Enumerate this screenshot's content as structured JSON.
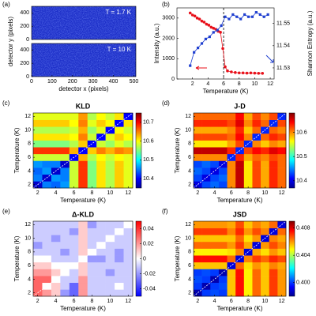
{
  "chart_data": [
    {
      "type": "image",
      "panel_label": "(a)",
      "xlabel": "detector x (pixels)",
      "ylabel": "detector y (pixels)",
      "xlim": [
        0,
        510
      ],
      "xticks": [
        0,
        100,
        200,
        300,
        400,
        500
      ],
      "ylim": [
        0,
        500
      ],
      "yticks": [
        0,
        200,
        400
      ],
      "images": [
        {
          "label": "T = 1.7 K",
          "color": "#1c2ec8"
        },
        {
          "label": "T = 10 K",
          "color": "#1c2ec8"
        }
      ]
    },
    {
      "type": "line",
      "panel_label": "(b)",
      "xlabel": "Temperature (K)",
      "ylabel": "Intensity (a.u.)",
      "y2label": "Shannon Entropy (a.u.)",
      "xlim": [
        0,
        12.5
      ],
      "xticks": [
        2,
        4,
        6,
        8,
        10,
        12
      ],
      "ylim": [
        0,
        3500
      ],
      "yticks": [
        0,
        1000,
        2000,
        3000
      ],
      "y2lim": [
        11.525,
        11.557
      ],
      "y2ticks": [
        11.53,
        11.54,
        11.55
      ],
      "vline": 6,
      "series": [
        {
          "color": "#e8101a",
          "marker": "circle",
          "x": [
            1.7,
            2.0,
            2.3,
            2.6,
            2.9,
            3.2,
            3.5,
            3.8,
            4.1,
            4.4,
            4.7,
            5.0,
            5.3,
            5.6,
            5.9,
            6.2,
            6.5,
            7.0,
            7.5,
            8.0,
            8.5,
            9.0,
            9.5,
            10.0,
            10.5,
            11.0
          ],
          "values": [
            3250,
            3150,
            3100,
            3000,
            2950,
            2850,
            2800,
            2700,
            2650,
            2550,
            2500,
            2450,
            2350,
            2300,
            1500,
            600,
            400,
            350,
            320,
            300,
            300,
            290,
            300,
            290,
            280,
            280
          ]
        },
        {
          "color": "#1f3fd0",
          "marker": "square",
          "axis": "y2",
          "x": [
            1.7,
            2.2,
            2.7,
            3.2,
            3.7,
            4.2,
            4.7,
            5.2,
            5.7,
            6.2,
            6.7,
            7.2,
            7.7,
            8.2,
            8.7,
            9.2,
            9.7,
            10.2,
            10.7,
            11.2,
            11.7
          ],
          "values": [
            11.531,
            11.537,
            11.539,
            11.541,
            11.543,
            11.544,
            11.546,
            11.547,
            11.549,
            11.553,
            11.552,
            11.554,
            11.553,
            11.552,
            11.554,
            11.553,
            11.553,
            11.555,
            11.554,
            11.553,
            11.554
          ]
        }
      ]
    },
    {
      "type": "heatmap",
      "panel_label": "(c)",
      "title": "KLD",
      "xlabel": "Temperature (K)",
      "ylabel": "Temperature (K)",
      "colormap": "jet",
      "x": [
        2,
        3,
        4,
        5,
        6,
        7,
        8,
        9,
        10,
        11,
        12
      ],
      "y": [
        2,
        3,
        4,
        5,
        6,
        7,
        8,
        9,
        10,
        11,
        12
      ],
      "xlim": [
        1.5,
        12.5
      ],
      "ylim": [
        1.5,
        12.5
      ],
      "xticks": [
        2,
        4,
        6,
        8,
        10,
        12
      ],
      "yticks": [
        2,
        4,
        6,
        8,
        10,
        12
      ],
      "clim": [
        10.35,
        10.75
      ],
      "cticks": [
        10.4,
        10.5,
        10.6,
        10.7
      ],
      "z": [
        [
          10.38,
          10.45,
          10.44,
          10.46,
          10.58,
          10.68,
          10.55,
          10.61,
          10.57,
          10.62,
          10.59
        ],
        [
          10.45,
          10.38,
          10.46,
          10.45,
          10.58,
          10.68,
          10.55,
          10.61,
          10.57,
          10.62,
          10.59
        ],
        [
          10.44,
          10.46,
          10.38,
          10.45,
          10.58,
          10.68,
          10.55,
          10.61,
          10.57,
          10.62,
          10.59
        ],
        [
          10.46,
          10.45,
          10.45,
          10.38,
          10.58,
          10.68,
          10.55,
          10.61,
          10.57,
          10.62,
          10.59
        ],
        [
          10.58,
          10.58,
          10.58,
          10.58,
          10.4,
          10.63,
          10.57,
          10.6,
          10.58,
          10.6,
          10.59
        ],
        [
          10.68,
          10.68,
          10.68,
          10.68,
          10.63,
          10.4,
          10.62,
          10.65,
          10.63,
          10.65,
          10.64
        ],
        [
          10.55,
          10.55,
          10.55,
          10.55,
          10.57,
          10.62,
          10.4,
          10.58,
          10.56,
          10.59,
          10.57
        ],
        [
          10.61,
          10.61,
          10.61,
          10.61,
          10.6,
          10.65,
          10.58,
          10.4,
          10.59,
          10.62,
          10.6
        ],
        [
          10.57,
          10.57,
          10.57,
          10.57,
          10.58,
          10.63,
          10.56,
          10.59,
          10.4,
          10.6,
          10.58
        ],
        [
          10.62,
          10.62,
          10.62,
          10.62,
          10.6,
          10.65,
          10.59,
          10.62,
          10.6,
          10.4,
          10.61
        ],
        [
          10.59,
          10.59,
          10.59,
          10.59,
          10.59,
          10.64,
          10.57,
          10.6,
          10.58,
          10.61,
          10.4
        ]
      ]
    },
    {
      "type": "heatmap",
      "panel_label": "(d)",
      "title": "J-D",
      "xlabel": "Temperature (K)",
      "ylabel": "Temperature (K)",
      "colormap": "jet",
      "x": [
        2,
        3,
        4,
        5,
        6,
        7,
        8,
        9,
        10,
        11,
        12
      ],
      "y": [
        2,
        3,
        4,
        5,
        6,
        7,
        8,
        9,
        10,
        11,
        12
      ],
      "xlim": [
        1.5,
        12.5
      ],
      "ylim": [
        1.5,
        12.5
      ],
      "xticks": [
        2,
        4,
        6,
        8,
        10,
        12
      ],
      "yticks": [
        2,
        4,
        6,
        8,
        10,
        12
      ],
      "clim": [
        10.37,
        10.68
      ],
      "cticks": [
        10.4,
        10.5,
        10.6
      ],
      "z": [
        [
          10.4,
          10.43,
          10.44,
          10.43,
          10.6,
          10.66,
          10.57,
          10.62,
          10.59,
          10.63,
          10.61
        ],
        [
          10.43,
          10.4,
          10.43,
          10.44,
          10.6,
          10.66,
          10.57,
          10.62,
          10.59,
          10.63,
          10.61
        ],
        [
          10.44,
          10.43,
          10.4,
          10.43,
          10.6,
          10.66,
          10.57,
          10.62,
          10.59,
          10.63,
          10.61
        ],
        [
          10.43,
          10.44,
          10.43,
          10.4,
          10.6,
          10.66,
          10.57,
          10.62,
          10.59,
          10.63,
          10.61
        ],
        [
          10.6,
          10.6,
          10.6,
          10.6,
          10.42,
          10.63,
          10.59,
          10.61,
          10.6,
          10.62,
          10.61
        ],
        [
          10.66,
          10.66,
          10.66,
          10.66,
          10.63,
          10.42,
          10.62,
          10.64,
          10.63,
          10.65,
          10.64
        ],
        [
          10.57,
          10.57,
          10.57,
          10.57,
          10.59,
          10.62,
          10.42,
          10.6,
          10.58,
          10.6,
          10.59
        ],
        [
          10.62,
          10.62,
          10.62,
          10.62,
          10.61,
          10.64,
          10.6,
          10.42,
          10.61,
          10.63,
          10.62
        ],
        [
          10.59,
          10.59,
          10.59,
          10.59,
          10.6,
          10.63,
          10.58,
          10.61,
          10.42,
          10.61,
          10.6
        ],
        [
          10.63,
          10.63,
          10.63,
          10.63,
          10.62,
          10.65,
          10.6,
          10.63,
          10.61,
          10.42,
          10.62
        ],
        [
          10.61,
          10.61,
          10.61,
          10.61,
          10.61,
          10.64,
          10.59,
          10.62,
          10.6,
          10.62,
          10.42
        ]
      ]
    },
    {
      "type": "heatmap",
      "panel_label": "(e)",
      "title": "Δ-KLD",
      "xlabel": "Temperature (K)",
      "ylabel": "Temperature (K)",
      "colormap": "bwr",
      "x": [
        2,
        3,
        4,
        5,
        6,
        7,
        8,
        9,
        10,
        11,
        12
      ],
      "y": [
        2,
        3,
        4,
        5,
        6,
        7,
        8,
        9,
        10,
        11,
        12
      ],
      "xlim": [
        1.5,
        12.5
      ],
      "ylim": [
        1.5,
        12.5
      ],
      "xticks": [
        2,
        4,
        6,
        8,
        10,
        12
      ],
      "yticks": [
        2,
        4,
        6,
        8,
        10,
        12
      ],
      "clim": [
        -0.05,
        0.05
      ],
      "cticks": [
        -0.04,
        -0.02,
        0,
        0.02,
        0.04
      ],
      "z": [
        [
          0.03,
          0.02,
          0.01,
          -0.02,
          -0.03,
          0.02,
          -0.01,
          -0.01,
          -0.01,
          -0.01,
          -0.01
        ],
        [
          0.03,
          0,
          0.01,
          -0.01,
          -0.03,
          0.02,
          -0.01,
          -0.01,
          -0.01,
          0,
          -0.01
        ],
        [
          0.03,
          0.03,
          0,
          -0.01,
          -0.01,
          0.02,
          -0.01,
          -0.01,
          -0.01,
          -0.01,
          -0.01
        ],
        [
          0.02,
          0.02,
          0.01,
          0,
          -0.01,
          0.01,
          -0.01,
          -0.01,
          -0.02,
          -0.01,
          -0.01
        ],
        [
          0.01,
          0.01,
          0,
          0,
          0,
          0.01,
          -0.01,
          -0.01,
          -0.01,
          -0.01,
          -0.01
        ],
        [
          0,
          0,
          -0.01,
          -0.01,
          -0.01,
          0,
          -0.02,
          -0.02,
          -0.01,
          -0.02,
          -0.01
        ],
        [
          -0.01,
          -0.01,
          -0.01,
          -0.02,
          -0.01,
          0.01,
          0,
          -0.01,
          -0.01,
          -0.02,
          -0.01
        ],
        [
          -0.02,
          -0.01,
          -0.01,
          -0.01,
          -0.01,
          0.01,
          -0.01,
          0,
          -0.01,
          -0.01,
          -0.01
        ],
        [
          -0.01,
          -0.01,
          -0.02,
          -0.01,
          -0.01,
          0.01,
          -0.01,
          -0.01,
          0,
          -0.01,
          -0.01
        ],
        [
          -0.01,
          -0.01,
          -0.01,
          -0.01,
          -0.02,
          0.01,
          -0.01,
          -0.01,
          -0.01,
          0,
          -0.01
        ],
        [
          -0.01,
          -0.01,
          -0.01,
          -0.01,
          -0.01,
          0.01,
          -0.02,
          -0.01,
          -0.01,
          -0.01,
          0
        ]
      ]
    },
    {
      "type": "heatmap",
      "panel_label": "(f)",
      "title": "JSD",
      "xlabel": "Temperature (K)",
      "ylabel": "Temperature (K)",
      "colormap": "jet",
      "x": [
        2,
        3,
        4,
        5,
        6,
        7,
        8,
        9,
        10,
        11,
        12
      ],
      "y": [
        2,
        3,
        4,
        5,
        6,
        7,
        8,
        9,
        10,
        11,
        12
      ],
      "xlim": [
        1.5,
        12.5
      ],
      "ylim": [
        1.5,
        12.5
      ],
      "xticks": [
        2,
        4,
        6,
        8,
        10,
        12
      ],
      "yticks": [
        2,
        4,
        6,
        8,
        10,
        12
      ],
      "clim": [
        0.398,
        0.409
      ],
      "cticks": [
        {
          "value": 0.4,
          "label": "0.400"
        },
        0.404,
        0.408
      ],
      "z": [
        [
          0.3985,
          0.4,
          0.4002,
          0.4,
          0.4055,
          0.4075,
          0.405,
          0.4065,
          0.4055,
          0.407,
          0.406
        ],
        [
          0.4,
          0.3985,
          0.4,
          0.4002,
          0.4055,
          0.4075,
          0.405,
          0.4065,
          0.4055,
          0.407,
          0.406
        ],
        [
          0.4002,
          0.4,
          0.3985,
          0.4,
          0.4055,
          0.4075,
          0.405,
          0.4065,
          0.4055,
          0.407,
          0.406
        ],
        [
          0.4,
          0.4002,
          0.4,
          0.3985,
          0.4055,
          0.4075,
          0.405,
          0.4065,
          0.4055,
          0.407,
          0.406
        ],
        [
          0.4055,
          0.4055,
          0.4055,
          0.4055,
          0.399,
          0.4065,
          0.4052,
          0.406,
          0.4055,
          0.4062,
          0.4058
        ],
        [
          0.4075,
          0.4075,
          0.4075,
          0.4075,
          0.4065,
          0.399,
          0.4062,
          0.407,
          0.4065,
          0.4072,
          0.4068
        ],
        [
          0.405,
          0.405,
          0.405,
          0.405,
          0.4052,
          0.4062,
          0.399,
          0.4058,
          0.4052,
          0.406,
          0.4055
        ],
        [
          0.4065,
          0.4065,
          0.4065,
          0.4065,
          0.406,
          0.407,
          0.4058,
          0.399,
          0.406,
          0.4068,
          0.4062
        ],
        [
          0.4055,
          0.4055,
          0.4055,
          0.4055,
          0.4055,
          0.4065,
          0.4052,
          0.406,
          0.399,
          0.4062,
          0.4058
        ],
        [
          0.407,
          0.407,
          0.407,
          0.407,
          0.4062,
          0.4072,
          0.406,
          0.4068,
          0.4062,
          0.399,
          0.4065
        ],
        [
          0.406,
          0.406,
          0.406,
          0.406,
          0.4058,
          0.4068,
          0.4055,
          0.4062,
          0.4058,
          0.4065,
          0.399
        ]
      ]
    }
  ]
}
